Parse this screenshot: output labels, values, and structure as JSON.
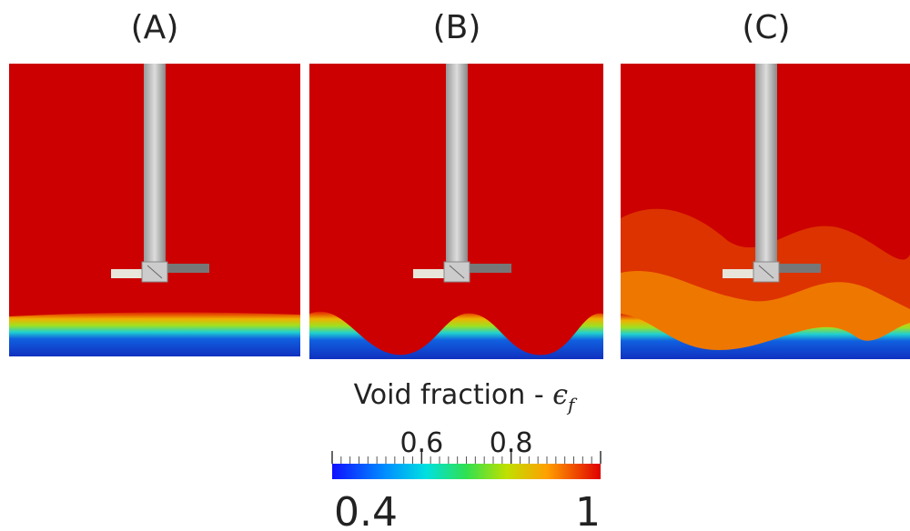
{
  "panels": [
    {
      "label": "(A)"
    },
    {
      "label": "(B)"
    },
    {
      "label": "(C)"
    }
  ],
  "colorbar": {
    "title": "Void fraction - ",
    "symbol": "ϵ",
    "subscript": "f",
    "range": [
      0.4,
      1
    ],
    "ticks": [
      0.4,
      0.6,
      0.8,
      1
    ]
  }
}
